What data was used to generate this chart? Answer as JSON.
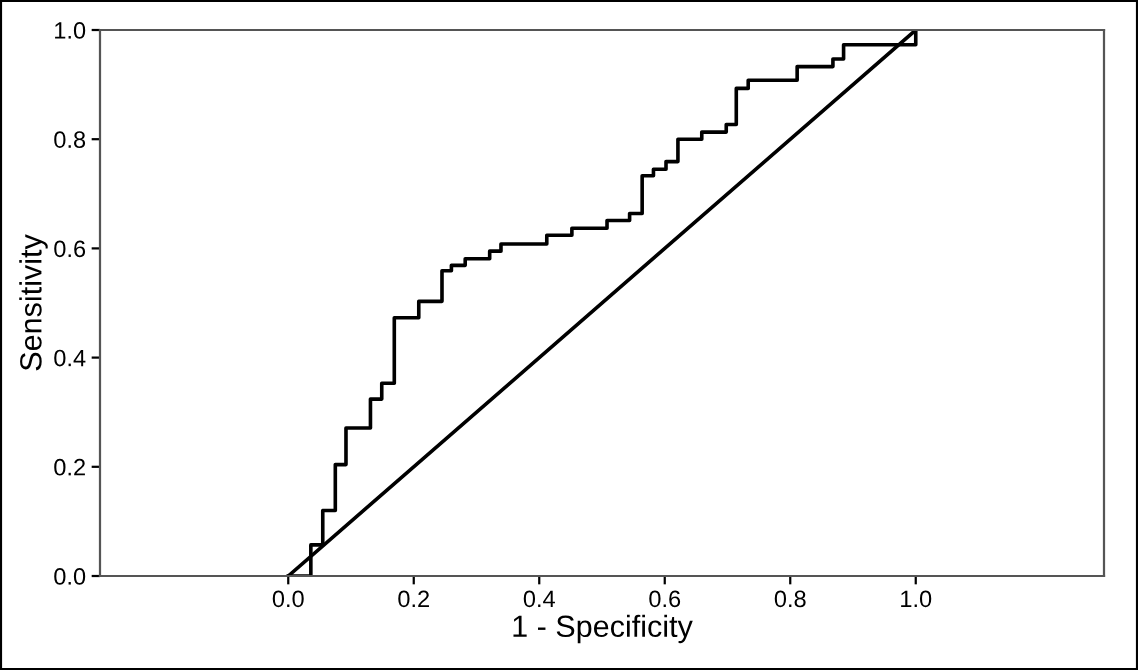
{
  "chart_data": {
    "type": "line",
    "xlabel": "1 - Specificity",
    "ylabel": "Sensitivity",
    "xlim": [
      -0.3,
      1.3
    ],
    "ylim": [
      0,
      1
    ],
    "xticks": [
      {
        "value": 0,
        "label": "0.0"
      },
      {
        "value": 0.2,
        "label": "0.2"
      },
      {
        "value": 0.4,
        "label": "0.4"
      },
      {
        "value": 0.6,
        "label": "0.6"
      },
      {
        "value": 0.8,
        "label": "0.8"
      },
      {
        "value": 1,
        "label": "1.0"
      }
    ],
    "yticks": [
      {
        "value": 0,
        "label": "0.0"
      },
      {
        "value": 0.2,
        "label": "0.2"
      },
      {
        "value": 0.4,
        "label": "0.4"
      },
      {
        "value": 0.6,
        "label": "0.6"
      },
      {
        "value": 0.8,
        "label": "0.8"
      },
      {
        "value": 1,
        "label": "1.0"
      }
    ],
    "grid": false,
    "legend": false,
    "marker": "none",
    "line_style": "solid",
    "series": [
      {
        "color": "#000000",
        "x": [
          0,
          0.036,
          0.036,
          0.055,
          0.055,
          0.075,
          0.075,
          0.092,
          0.092,
          0.131,
          0.131,
          0.149,
          0.149,
          0.169,
          0.169,
          0.208,
          0.208,
          0.245,
          0.245,
          0.26,
          0.26,
          0.282,
          0.282,
          0.321,
          0.321,
          0.339,
          0.339,
          0.412,
          0.412,
          0.452,
          0.452,
          0.508,
          0.508,
          0.544,
          0.544,
          0.564,
          0.564,
          0.582,
          0.582,
          0.602,
          0.602,
          0.621,
          0.621,
          0.659,
          0.659,
          0.698,
          0.698,
          0.714,
          0.714,
          0.733,
          0.733,
          0.811,
          0.811,
          0.868,
          0.868,
          0.885,
          0.885,
          1.0,
          1.0
        ],
        "values": [
          0,
          0,
          0.057,
          0.057,
          0.12,
          0.12,
          0.204,
          0.204,
          0.271,
          0.271,
          0.324,
          0.324,
          0.353,
          0.353,
          0.473,
          0.473,
          0.503,
          0.503,
          0.559,
          0.559,
          0.569,
          0.569,
          0.581,
          0.581,
          0.595,
          0.595,
          0.608,
          0.608,
          0.624,
          0.624,
          0.637,
          0.637,
          0.651,
          0.651,
          0.664,
          0.664,
          0.733,
          0.733,
          0.745,
          0.745,
          0.759,
          0.759,
          0.8,
          0.8,
          0.813,
          0.813,
          0.827,
          0.827,
          0.893,
          0.893,
          0.908,
          0.908,
          0.933,
          0.933,
          0.947,
          0.947,
          0.973,
          0.973,
          1.0
        ]
      },
      {
        "color": "#000000",
        "x": [
          0,
          1
        ],
        "values": [
          0,
          1
        ]
      }
    ]
  }
}
